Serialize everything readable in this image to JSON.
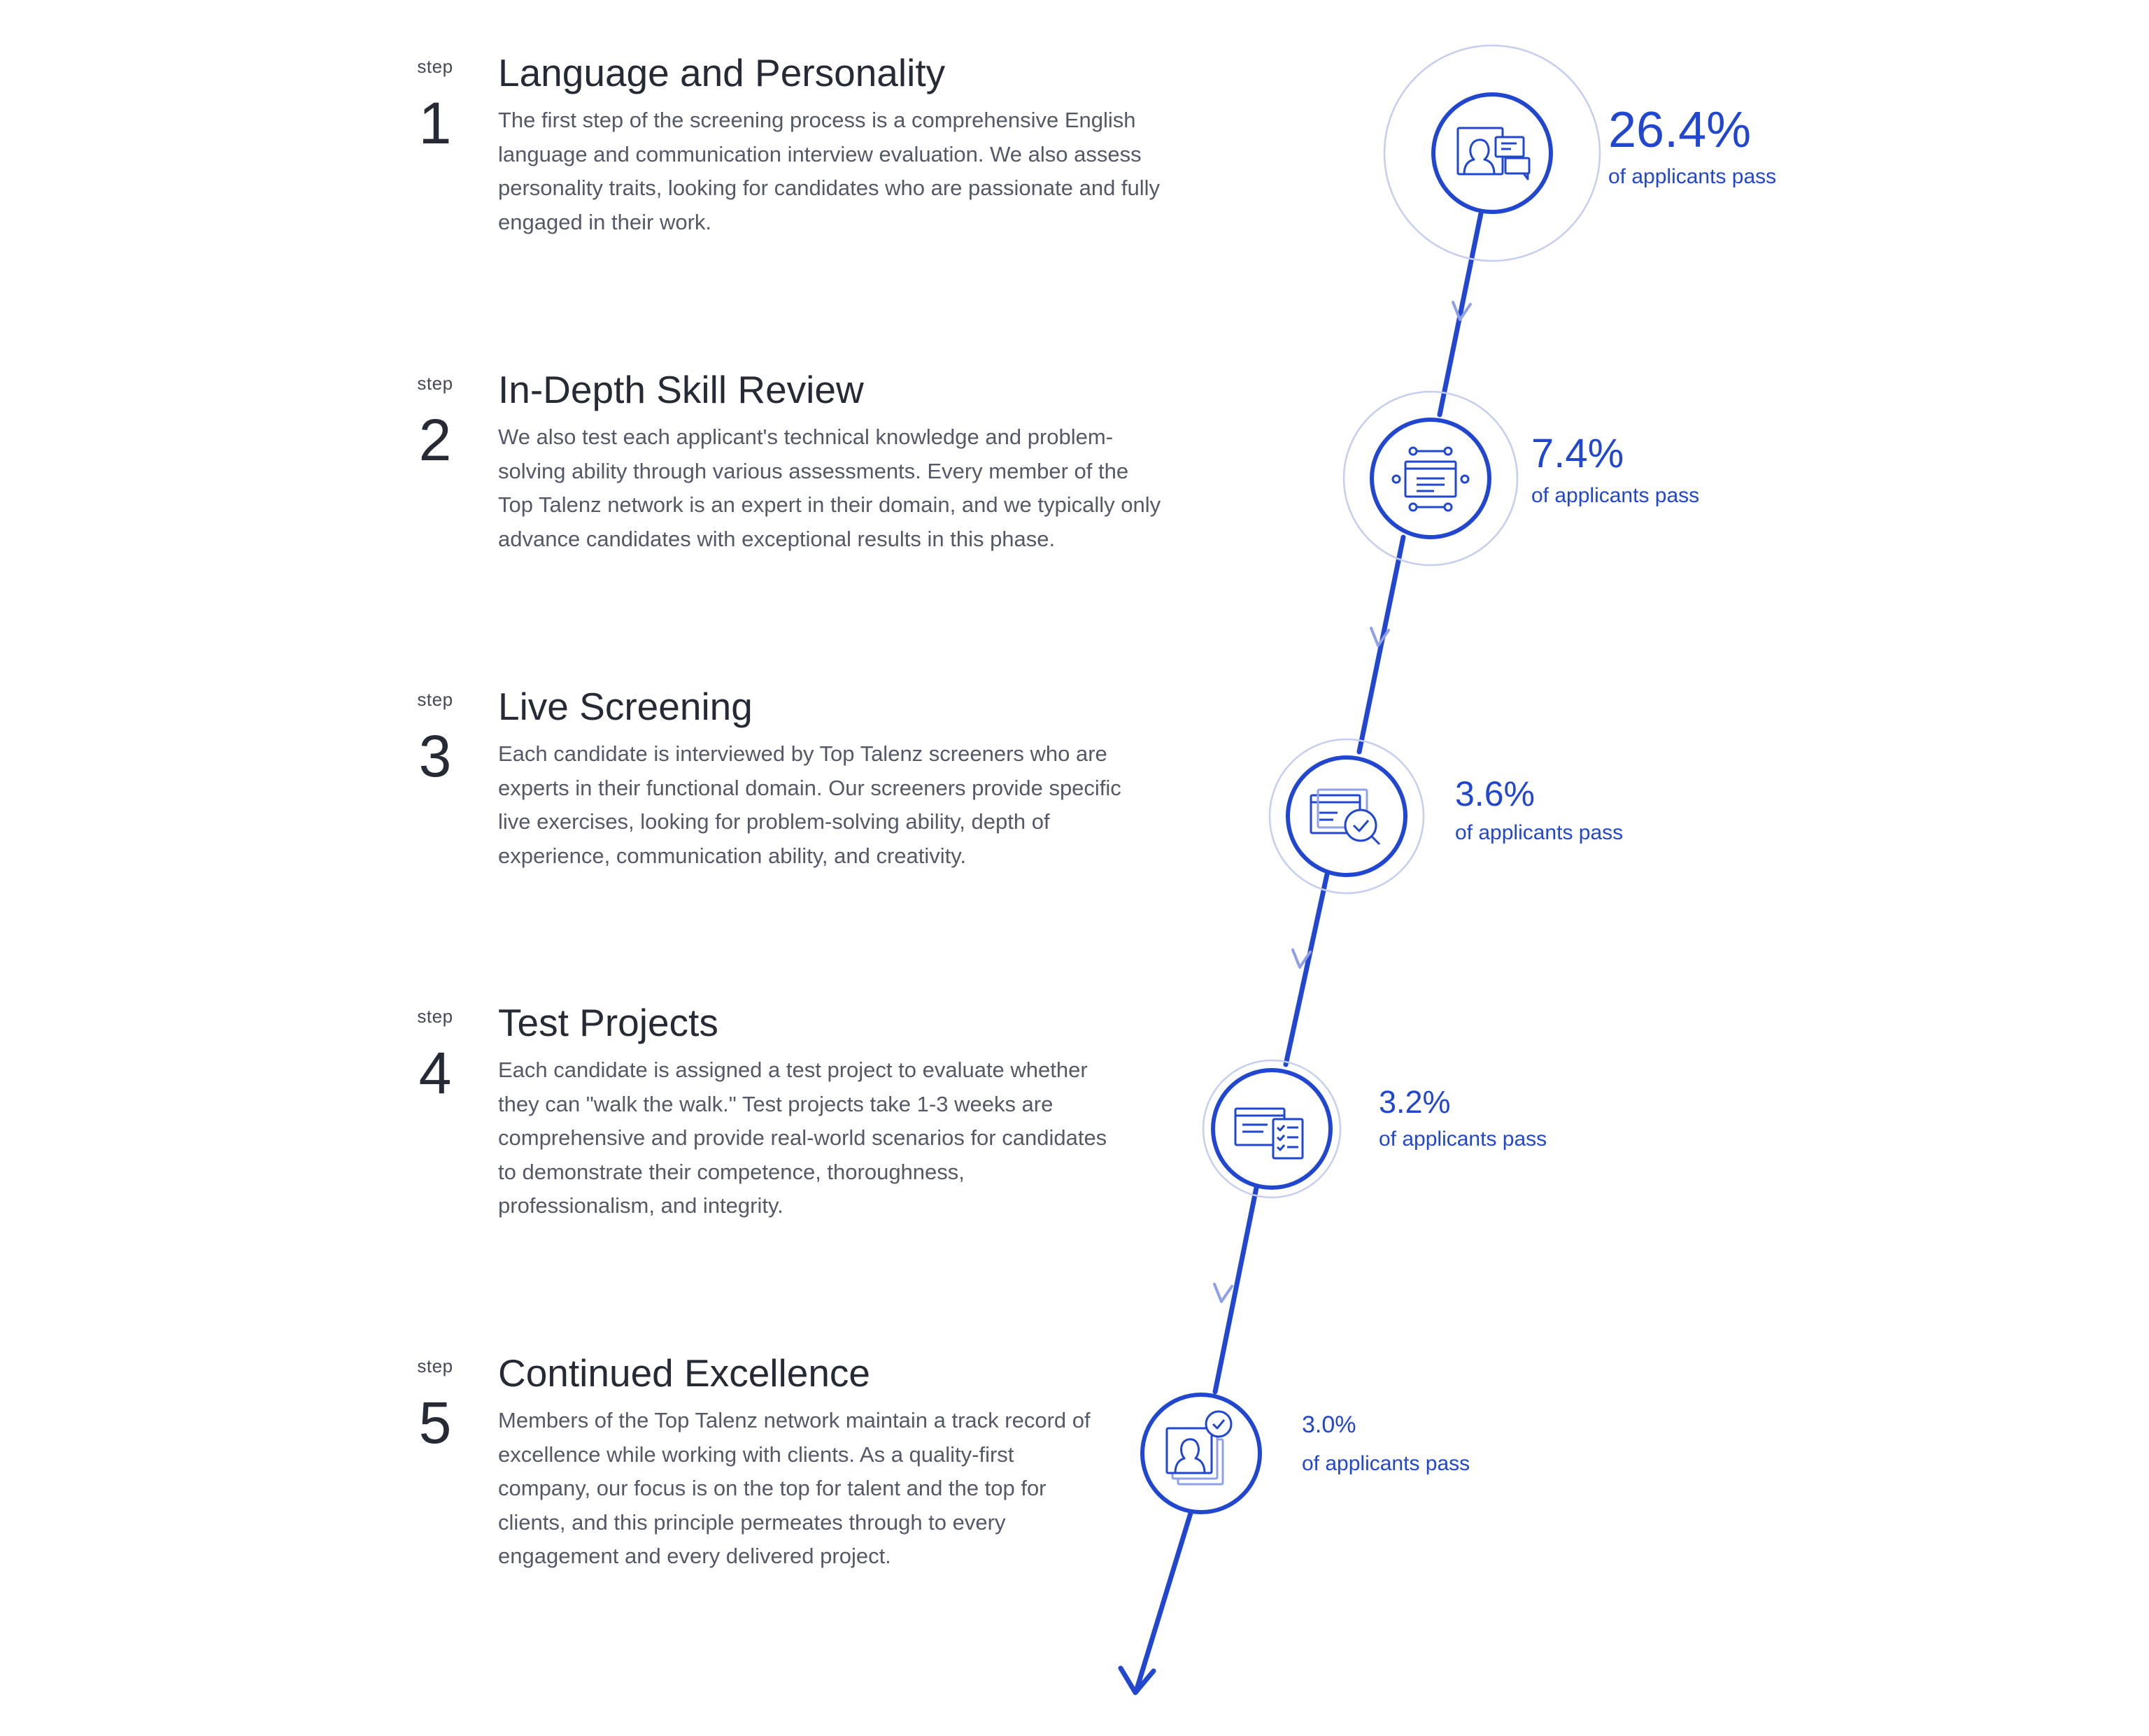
{
  "steps": [
    {
      "word": "step",
      "number": "1",
      "title": "Language and Personality",
      "description": [
        "The first step of the screening process is a comprehensive English",
        "language and communication interview evaluation. We also assess",
        "personality traits, looking for candidates who are passionate and fully",
        "engaged in their work."
      ],
      "pass_rate": "26.4%",
      "pass_label": "of applicants pass",
      "icon": "conversation-icon"
    },
    {
      "word": "step",
      "number": "2",
      "title": "In-Depth Skill Review",
      "description": [
        "We also test each applicant's technical knowledge and problem-",
        "solving ability through various assessments. Every member of the",
        "Top Talenz network is an expert in their domain, and we typically only",
        "advance candidates with exceptional results in this phase."
      ],
      "pass_rate": "7.4%",
      "pass_label": "of applicants pass",
      "icon": "browser-nodes-icon"
    },
    {
      "word": "step",
      "number": "3",
      "title": "Live Screening",
      "description": [
        "Each candidate is interviewed by Top Talenz screeners who are",
        "experts in their functional domain. Our screeners provide specific",
        "live exercises, looking for problem-solving ability, depth of",
        "experience, communication ability, and creativity."
      ],
      "pass_rate": "3.6%",
      "pass_label": "of applicants pass",
      "icon": "window-magnifier-check-icon"
    },
    {
      "word": "step",
      "number": "4",
      "title": "Test Projects",
      "description": [
        "Each candidate is assigned a test project to evaluate whether",
        "they can \"walk the walk.\" Test projects take 1-3 weeks are",
        "comprehensive and provide real-world scenarios for candidates",
        "to demonstrate their competence, thoroughness,",
        "professionalism, and integrity."
      ],
      "pass_rate": "3.2%",
      "pass_label": "of applicants pass",
      "icon": "window-checklist-icon"
    },
    {
      "word": "step",
      "number": "5",
      "title": "Continued Excellence",
      "description": [
        "Members of the Top Talenz network maintain a track record of",
        "excellence while working with clients. As a quality-first",
        "company, our focus is on the top for talent and the top for",
        "clients, and this principle permeates through to every",
        "engagement and every delivered project."
      ],
      "pass_rate": "3.0%",
      "pass_label": "of applicants pass",
      "icon": "profile-stack-check-icon"
    }
  ],
  "colors": {
    "accent": "#2146d0",
    "accent_light": "#c5cef1",
    "arrow_light": "#8fa0e6",
    "heading": "#262a35",
    "body": "#545867"
  }
}
